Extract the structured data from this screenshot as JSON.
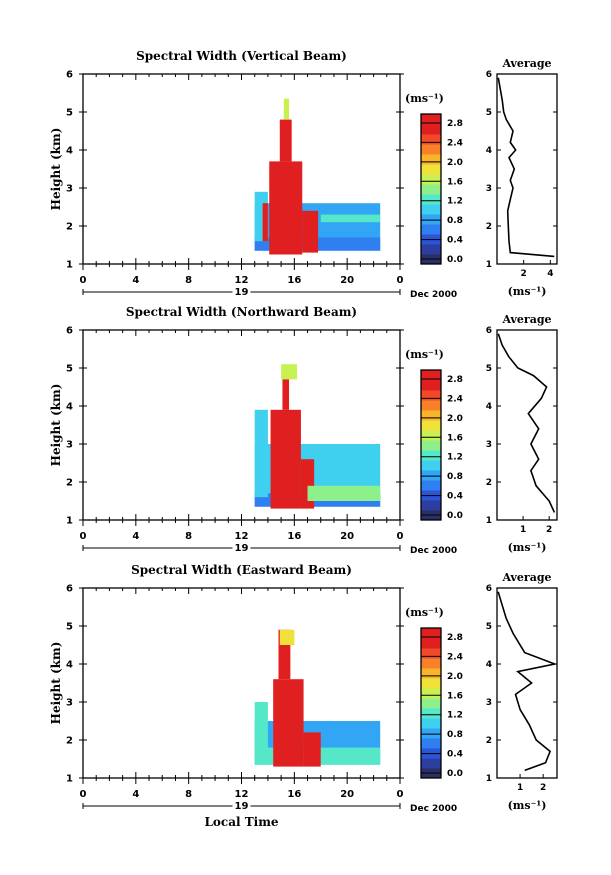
{
  "figure": {
    "date_label": "Dec 2000",
    "day_label": "19",
    "xlabel": "Local Time",
    "ylabel": "Height (km)",
    "colorbar_units": "(ms⁻¹)",
    "profile_title": "Average",
    "profile_xlabel": "(ms⁻¹)"
  },
  "chart_data": [
    {
      "type": "heatmap",
      "title": "Spectral Width (Vertical Beam)",
      "ylabel": "Height (km)",
      "x_ticks": [
        "0",
        "4",
        "8",
        "12",
        "16",
        "20",
        "0"
      ],
      "y_ticks": [
        "1",
        "2",
        "3",
        "4",
        "5",
        "6"
      ],
      "xlim": [
        0,
        24
      ],
      "ylim": [
        1,
        6
      ],
      "colorbar": {
        "min": 0,
        "max": 3.0,
        "ticks": [
          "0.0",
          "0.4",
          "0.8",
          "1.2",
          "1.6",
          "2.0",
          "2.4",
          "2.8"
        ]
      },
      "regions": [
        {
          "t0": 13.0,
          "t1": 22.5,
          "h0": 1.35,
          "h1": 2.6,
          "value": 1.0
        },
        {
          "t0": 13.0,
          "t1": 22.5,
          "h0": 1.35,
          "h1": 1.7,
          "value": 0.65
        },
        {
          "t0": 13.0,
          "t1": 14.0,
          "h0": 1.6,
          "h1": 2.9,
          "value": 1.2
        },
        {
          "t0": 14.1,
          "t1": 16.6,
          "h0": 1.25,
          "h1": 3.7,
          "value": 2.9
        },
        {
          "t0": 14.9,
          "t1": 15.8,
          "h0": 3.7,
          "h1": 4.8,
          "value": 2.9
        },
        {
          "t0": 15.2,
          "t1": 15.6,
          "h0": 4.8,
          "h1": 5.35,
          "value": 1.9
        },
        {
          "t0": 16.6,
          "t1": 17.8,
          "h0": 1.3,
          "h1": 2.4,
          "value": 2.9
        },
        {
          "t0": 13.6,
          "t1": 14.0,
          "h0": 1.6,
          "h1": 2.6,
          "value": 2.9
        },
        {
          "t0": 18.0,
          "t1": 22.5,
          "h0": 2.1,
          "h1": 2.3,
          "value": 1.4
        }
      ],
      "profile": {
        "xlim": [
          0,
          4.5
        ],
        "x_ticks": [
          "2",
          "4"
        ],
        "points": [
          [
            4.3,
            1.2
          ],
          [
            1.0,
            1.3
          ],
          [
            0.9,
            1.6
          ],
          [
            0.85,
            2.0
          ],
          [
            0.8,
            2.4
          ],
          [
            1.0,
            2.7
          ],
          [
            1.2,
            3.0
          ],
          [
            1.0,
            3.2
          ],
          [
            1.3,
            3.5
          ],
          [
            0.9,
            3.8
          ],
          [
            1.4,
            4.0
          ],
          [
            1.0,
            4.2
          ],
          [
            1.2,
            4.5
          ],
          [
            0.7,
            4.8
          ],
          [
            0.5,
            5.0
          ],
          [
            0.4,
            5.3
          ],
          [
            0.25,
            5.6
          ],
          [
            0.1,
            5.9
          ]
        ]
      }
    },
    {
      "type": "heatmap",
      "title": "Spectral Width (Northward Beam)",
      "ylabel": "Height (km)",
      "x_ticks": [
        "0",
        "4",
        "8",
        "12",
        "16",
        "20",
        "0"
      ],
      "y_ticks": [
        "1",
        "2",
        "3",
        "4",
        "5",
        "6"
      ],
      "xlim": [
        0,
        24
      ],
      "ylim": [
        1,
        6
      ],
      "colorbar": {
        "min": 0,
        "max": 3.0,
        "ticks": [
          "0.0",
          "0.4",
          "0.8",
          "1.2",
          "1.6",
          "2.0",
          "2.4",
          "2.8"
        ]
      },
      "regions": [
        {
          "t0": 13.0,
          "t1": 22.5,
          "h0": 1.35,
          "h1": 3.0,
          "value": 1.1
        },
        {
          "t0": 13.0,
          "t1": 22.5,
          "h0": 1.35,
          "h1": 1.7,
          "value": 0.75
        },
        {
          "t0": 13.0,
          "t1": 14.0,
          "h0": 1.6,
          "h1": 3.9,
          "value": 1.2
        },
        {
          "t0": 14.2,
          "t1": 16.5,
          "h0": 1.3,
          "h1": 3.9,
          "value": 2.9
        },
        {
          "t0": 15.1,
          "t1": 15.6,
          "h0": 3.9,
          "h1": 4.8,
          "value": 2.9
        },
        {
          "t0": 15.0,
          "t1": 16.2,
          "h0": 4.7,
          "h1": 5.1,
          "value": 1.8
        },
        {
          "t0": 16.5,
          "t1": 17.5,
          "h0": 1.3,
          "h1": 2.6,
          "value": 2.9
        },
        {
          "t0": 17.0,
          "t1": 22.5,
          "h0": 1.5,
          "h1": 1.9,
          "value": 1.6
        }
      ],
      "profile": {
        "xlim": [
          0,
          2.3
        ],
        "x_ticks": [
          "1",
          "2"
        ],
        "points": [
          [
            2.2,
            1.2
          ],
          [
            2.0,
            1.5
          ],
          [
            1.5,
            1.9
          ],
          [
            1.3,
            2.3
          ],
          [
            1.6,
            2.6
          ],
          [
            1.3,
            3.0
          ],
          [
            1.6,
            3.4
          ],
          [
            1.2,
            3.8
          ],
          [
            1.7,
            4.2
          ],
          [
            1.9,
            4.5
          ],
          [
            1.4,
            4.8
          ],
          [
            0.8,
            5.0
          ],
          [
            0.45,
            5.3
          ],
          [
            0.2,
            5.6
          ],
          [
            0.05,
            5.9
          ]
        ]
      }
    },
    {
      "type": "heatmap",
      "title": "Spectral Width (Eastward Beam)",
      "ylabel": "Height (km)",
      "x_ticks": [
        "0",
        "4",
        "8",
        "12",
        "16",
        "20",
        "0"
      ],
      "y_ticks": [
        "1",
        "2",
        "3",
        "4",
        "5",
        "6"
      ],
      "xlim": [
        0,
        24
      ],
      "ylim": [
        1,
        6
      ],
      "colorbar": {
        "min": 0,
        "max": 3.0,
        "ticks": [
          "0.0",
          "0.4",
          "0.8",
          "1.2",
          "1.6",
          "2.0",
          "2.4",
          "2.8"
        ]
      },
      "regions": [
        {
          "t0": 13.0,
          "t1": 22.5,
          "h0": 1.35,
          "h1": 2.5,
          "value": 0.9
        },
        {
          "t0": 13.0,
          "t1": 22.5,
          "h0": 1.35,
          "h1": 1.8,
          "value": 1.3
        },
        {
          "t0": 13.0,
          "t1": 14.0,
          "h0": 1.5,
          "h1": 3.0,
          "value": 1.3
        },
        {
          "t0": 14.4,
          "t1": 16.7,
          "h0": 1.3,
          "h1": 3.6,
          "value": 2.9
        },
        {
          "t0": 14.8,
          "t1": 15.7,
          "h0": 3.6,
          "h1": 4.9,
          "value": 2.9
        },
        {
          "t0": 14.9,
          "t1": 16.0,
          "h0": 4.5,
          "h1": 4.9,
          "value": 2.0
        },
        {
          "t0": 16.7,
          "t1": 18.0,
          "h0": 1.3,
          "h1": 2.2,
          "value": 2.9
        }
      ],
      "profile": {
        "xlim": [
          0,
          2.6
        ],
        "x_ticks": [
          "1",
          "2"
        ],
        "points": [
          [
            1.2,
            1.2
          ],
          [
            2.1,
            1.4
          ],
          [
            2.3,
            1.7
          ],
          [
            1.7,
            2.0
          ],
          [
            1.4,
            2.4
          ],
          [
            1.0,
            2.8
          ],
          [
            0.8,
            3.2
          ],
          [
            1.5,
            3.5
          ],
          [
            0.9,
            3.8
          ],
          [
            2.5,
            4.0
          ],
          [
            1.2,
            4.3
          ],
          [
            0.7,
            4.8
          ],
          [
            0.4,
            5.2
          ],
          [
            0.2,
            5.6
          ],
          [
            0.05,
            5.9
          ]
        ]
      }
    }
  ]
}
